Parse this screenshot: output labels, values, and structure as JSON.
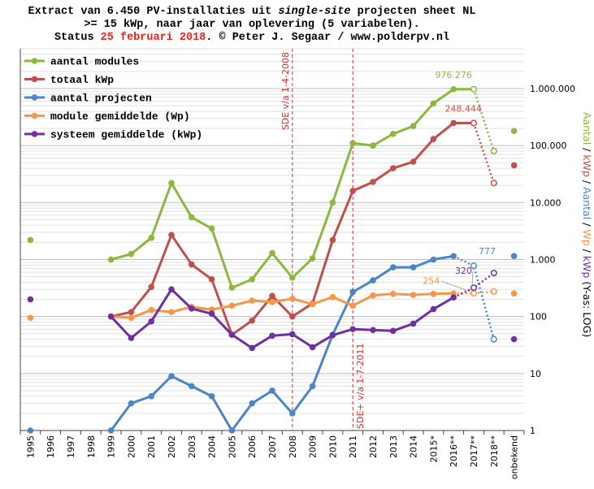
{
  "title": {
    "line1_a": "Extract van 6.450 PV-installaties uit ",
    "line1_em": "single-site",
    "line1_b": " projecten sheet NL",
    "line2": ">= 15 kWp, naar jaar van oplevering (5 variabelen).",
    "line3_a": "Status ",
    "line3_date": "25 februari 2018",
    "line3_b": ". © Peter J. Segaar / www.polderpv.nl"
  },
  "chart_data": {
    "type": "line",
    "y_scale": "log",
    "ylim": [
      1,
      5000000
    ],
    "y_ticks": [
      1,
      10,
      100,
      1000,
      10000,
      100000,
      1000000
    ],
    "y_tick_labels": [
      "1",
      "10",
      "100",
      "1.000",
      "10.000",
      "100.000",
      "1.000.000"
    ],
    "categories": [
      "1995",
      "1996",
      "1997",
      "1998",
      "1999",
      "2000",
      "2001",
      "2002",
      "2003",
      "2004",
      "2005",
      "2006",
      "2007",
      "2008",
      "2009",
      "2010",
      "2011",
      "2012",
      "2013",
      "2014",
      "2015*",
      "2016**",
      "2017**",
      "2018**",
      "onbekend"
    ],
    "ylabel_parts": [
      {
        "text": "Aantal",
        "color": "#8cb83f"
      },
      {
        "text": " / ",
        "color": "#000000"
      },
      {
        "text": "kWp",
        "color": "#c0504d"
      },
      {
        "text": " / ",
        "color": "#000000"
      },
      {
        "text": "Aantal",
        "color": "#4a86c5"
      },
      {
        "text": " / ",
        "color": "#000000"
      },
      {
        "text": "Wp",
        "color": "#f79646"
      },
      {
        "text": " / ",
        "color": "#000000"
      },
      {
        "text": "kWp",
        "color": "#7030a0"
      },
      {
        "text": " (Y-as: LOG)",
        "color": "#000000"
      }
    ],
    "series": [
      {
        "name": "aantal modules",
        "color": "#8cb83f",
        "isolated": [
          {
            "cat": "1995",
            "value": 2200
          },
          {
            "cat": "onbekend",
            "value": 180000
          }
        ],
        "solid": [
          [
            "1999",
            1000
          ],
          [
            "2000",
            1250
          ],
          [
            "2001",
            2400
          ],
          [
            "2002",
            22000
          ],
          [
            "2003",
            5500
          ],
          [
            "2004",
            3500
          ],
          [
            "2005",
            320
          ],
          [
            "2006",
            450
          ],
          [
            "2007",
            1300
          ],
          [
            "2008",
            480
          ],
          [
            "2009",
            1050
          ],
          [
            "2010",
            10000
          ],
          [
            "2011",
            110000
          ],
          [
            "2012",
            100000
          ],
          [
            "2013",
            160000
          ],
          [
            "2014",
            220000
          ],
          [
            "2015*",
            550000
          ],
          [
            "2016**",
            976276
          ],
          [
            "2017**",
            976276
          ]
        ],
        "projected": [
          [
            "2017**",
            976276
          ],
          [
            "2018**",
            80000
          ]
        ],
        "open_markers": [
          "2017**",
          "2018**"
        ],
        "annotation": {
          "text": "976.276",
          "cat": "2016**",
          "value": 976276
        }
      },
      {
        "name": "totaal kWp",
        "color": "#c0504d",
        "isolated": [
          {
            "cat": "onbekend",
            "value": 45000
          }
        ],
        "solid": [
          [
            "1999",
            100
          ],
          [
            "2000",
            120
          ],
          [
            "2001",
            330
          ],
          [
            "2002",
            2700
          ],
          [
            "2003",
            820
          ],
          [
            "2004",
            450
          ],
          [
            "2005",
            48
          ],
          [
            "2006",
            85
          ],
          [
            "2007",
            230
          ],
          [
            "2008",
            100
          ],
          [
            "2009",
            170
          ],
          [
            "2010",
            2200
          ],
          [
            "2011",
            16000
          ],
          [
            "2012",
            23000
          ],
          [
            "2013",
            40000
          ],
          [
            "2014",
            52000
          ],
          [
            "2015*",
            130000
          ],
          [
            "2016**",
            248444
          ],
          [
            "2017**",
            248444
          ]
        ],
        "projected": [
          [
            "2017**",
            248444
          ],
          [
            "2018**",
            22000
          ]
        ],
        "open_markers": [
          "2017**",
          "2018**"
        ],
        "annotation": {
          "text": "248.444",
          "cat": "2016**",
          "value": 248444
        }
      },
      {
        "name": "aantal projecten",
        "color": "#4a86c5",
        "isolated": [
          {
            "cat": "1995",
            "value": 1
          },
          {
            "cat": "onbekend",
            "value": 1150
          }
        ],
        "solid": [
          [
            "1999",
            1
          ],
          [
            "2000",
            3
          ],
          [
            "2001",
            4
          ],
          [
            "2002",
            9
          ],
          [
            "2003",
            6
          ],
          [
            "2004",
            4
          ],
          [
            "2005",
            1
          ],
          [
            "2006",
            3
          ],
          [
            "2007",
            5
          ],
          [
            "2008",
            2
          ],
          [
            "2009",
            6
          ],
          [
            "2010",
            48
          ],
          [
            "2011",
            270
          ],
          [
            "2012",
            430
          ],
          [
            "2013",
            730
          ],
          [
            "2014",
            730
          ],
          [
            "2015*",
            1000
          ],
          [
            "2016**",
            1150
          ]
        ],
        "projected": [
          [
            "2016**",
            1150
          ],
          [
            "2017**",
            777
          ],
          [
            "2018**",
            40
          ]
        ],
        "open_markers": [
          "2017**",
          "2018**"
        ],
        "annotation": {
          "text": "777",
          "cat": "2017**",
          "value": 777
        }
      },
      {
        "name": "module gemiddelde (Wp)",
        "color": "#f79646",
        "isolated": [
          {
            "cat": "1995",
            "value": 95
          },
          {
            "cat": "onbekend",
            "value": 254
          }
        ],
        "solid": [
          [
            "1999",
            100
          ],
          [
            "2000",
            95
          ],
          [
            "2001",
            130
          ],
          [
            "2002",
            120
          ],
          [
            "2003",
            148
          ],
          [
            "2004",
            132
          ],
          [
            "2005",
            155
          ],
          [
            "2006",
            190
          ],
          [
            "2007",
            180
          ],
          [
            "2008",
            205
          ],
          [
            "2009",
            165
          ],
          [
            "2010",
            220
          ],
          [
            "2011",
            155
          ],
          [
            "2012",
            235
          ],
          [
            "2013",
            250
          ],
          [
            "2014",
            240
          ],
          [
            "2015*",
            250
          ],
          [
            "2016**",
            254
          ]
        ],
        "projected": [
          [
            "2016**",
            254
          ],
          [
            "2017**",
            256
          ],
          [
            "2018**",
            275
          ]
        ],
        "open_markers": [
          "2017**",
          "2018**"
        ],
        "annotation": {
          "text": "254",
          "cat": "2016**",
          "value": 254
        }
      },
      {
        "name": "systeem gemiddelde (kWp)",
        "color": "#7030a0",
        "isolated": [
          {
            "cat": "1995",
            "value": 200
          },
          {
            "cat": "onbekend",
            "value": 40
          }
        ],
        "solid": [
          [
            "1999",
            100
          ],
          [
            "2000",
            42
          ],
          [
            "2001",
            82
          ],
          [
            "2002",
            300
          ],
          [
            "2003",
            138
          ],
          [
            "2004",
            112
          ],
          [
            "2005",
            48
          ],
          [
            "2006",
            28
          ],
          [
            "2007",
            46
          ],
          [
            "2008",
            49
          ],
          [
            "2009",
            29
          ],
          [
            "2010",
            47
          ],
          [
            "2011",
            60
          ],
          [
            "2012",
            58
          ],
          [
            "2013",
            56
          ],
          [
            "2014",
            75
          ],
          [
            "2015*",
            135
          ],
          [
            "2016**",
            216
          ]
        ],
        "projected": [
          [
            "2016**",
            216
          ],
          [
            "2017**",
            320
          ],
          [
            "2018**",
            580
          ]
        ],
        "open_markers": [
          "2017**",
          "2018**"
        ],
        "annotation": {
          "text": "320",
          "cat": "2017**",
          "value": 320
        }
      }
    ],
    "vlines": [
      {
        "cat": "2008",
        "label": "SDE v/a 1-4-2008",
        "label_position": "top"
      },
      {
        "cat": "2011",
        "label": "SDE+ v/a 1-7-2011",
        "label_position": "bottom"
      }
    ],
    "legend_position": "top-left"
  }
}
